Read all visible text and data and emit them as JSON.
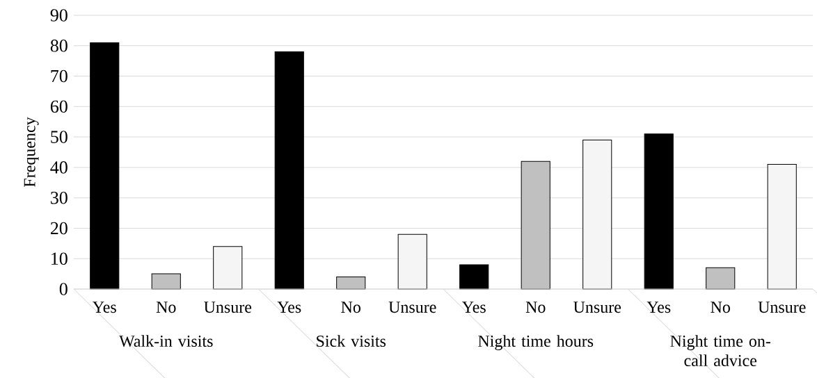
{
  "chart_data": {
    "type": "bar",
    "ylabel": "Frequency",
    "categories": [
      "Walk-in visits",
      "Sick visits",
      "Night time hours",
      "Night time on-call advice"
    ],
    "series": [
      {
        "name": "Yes",
        "color": "#000000",
        "values": [
          81,
          78,
          8,
          51
        ]
      },
      {
        "name": "No",
        "color": "#c0c0c0",
        "values": [
          5,
          4,
          42,
          7
        ]
      },
      {
        "name": "Unsure",
        "color": "#f5f5f5",
        "values": [
          14,
          18,
          49,
          41
        ]
      }
    ],
    "ylim": [
      0,
      90
    ],
    "yticks": [
      0,
      10,
      20,
      30,
      40,
      50,
      60,
      70,
      80,
      90
    ],
    "grid": "y"
  }
}
